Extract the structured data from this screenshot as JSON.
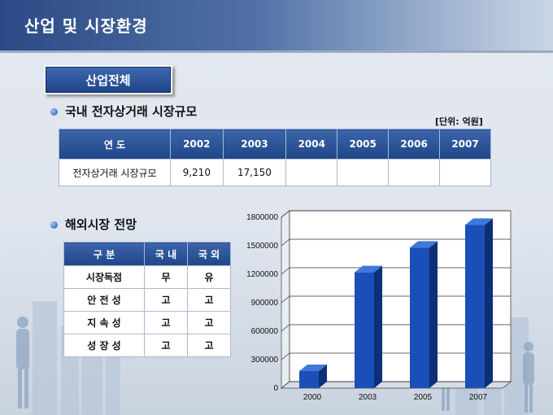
{
  "header": {
    "title": "산업 및 시장환경"
  },
  "section_button": {
    "label": "산업전체"
  },
  "domestic": {
    "heading": "국내 전자상거래 시장규모",
    "unit": "[단위: 억원]",
    "table": {
      "header_label": "연 도",
      "years": [
        "2002",
        "2003",
        "2004",
        "2005",
        "2006",
        "2007"
      ],
      "row_label": "전자상거래 시장규모",
      "values": [
        "9,210",
        "17,150",
        "",
        "",
        "",
        ""
      ]
    }
  },
  "overseas": {
    "heading": "해외시장 전망",
    "table": {
      "headers": [
        "구 분",
        "국 내",
        "국 외"
      ],
      "rows": [
        {
          "label": "시장독점",
          "domestic": "무",
          "foreign": "유"
        },
        {
          "label": "안 전 성",
          "domestic": "고",
          "foreign": "고"
        },
        {
          "label": "지 속 성",
          "domestic": "고",
          "foreign": "고"
        },
        {
          "label": "성 장 성",
          "domestic": "고",
          "foreign": "고"
        }
      ]
    }
  },
  "colors": {
    "bar_front": "#1b4fb8",
    "bar_side": "#0d2f78",
    "bar_top": "#3f78d8",
    "header_blue": "#2a52a0"
  },
  "chart_data": {
    "type": "bar",
    "categories": [
      "2000",
      "2003",
      "2005",
      "2007"
    ],
    "values": [
      180000,
      1220000,
      1480000,
      1720000
    ],
    "ylim": [
      0,
      1800000
    ],
    "yticks": [
      "0",
      "300000",
      "600000",
      "900000",
      "1200000",
      "1500000",
      "1800000"
    ],
    "grid": true
  }
}
